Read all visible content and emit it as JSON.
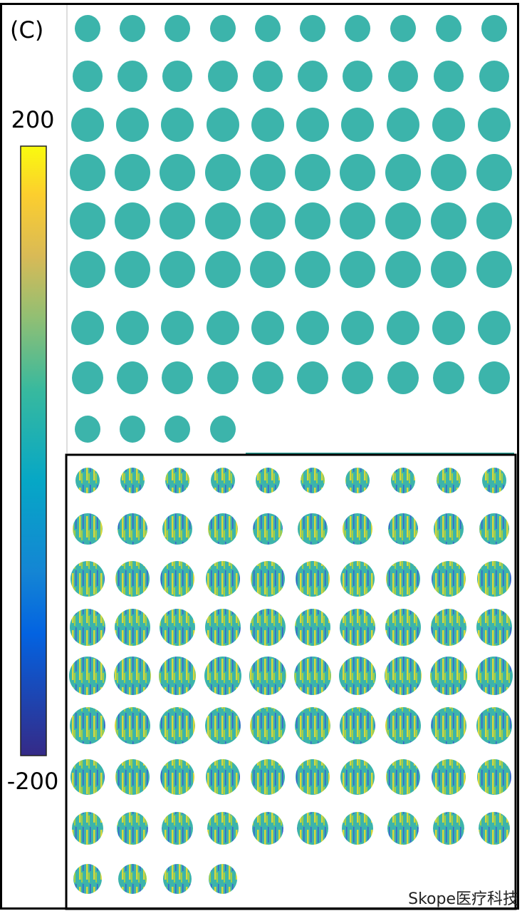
{
  "panel_label": "(C)",
  "colorbar": {
    "max": 200,
    "min": -200
  },
  "watermark": "Skope医疗科技"
}
